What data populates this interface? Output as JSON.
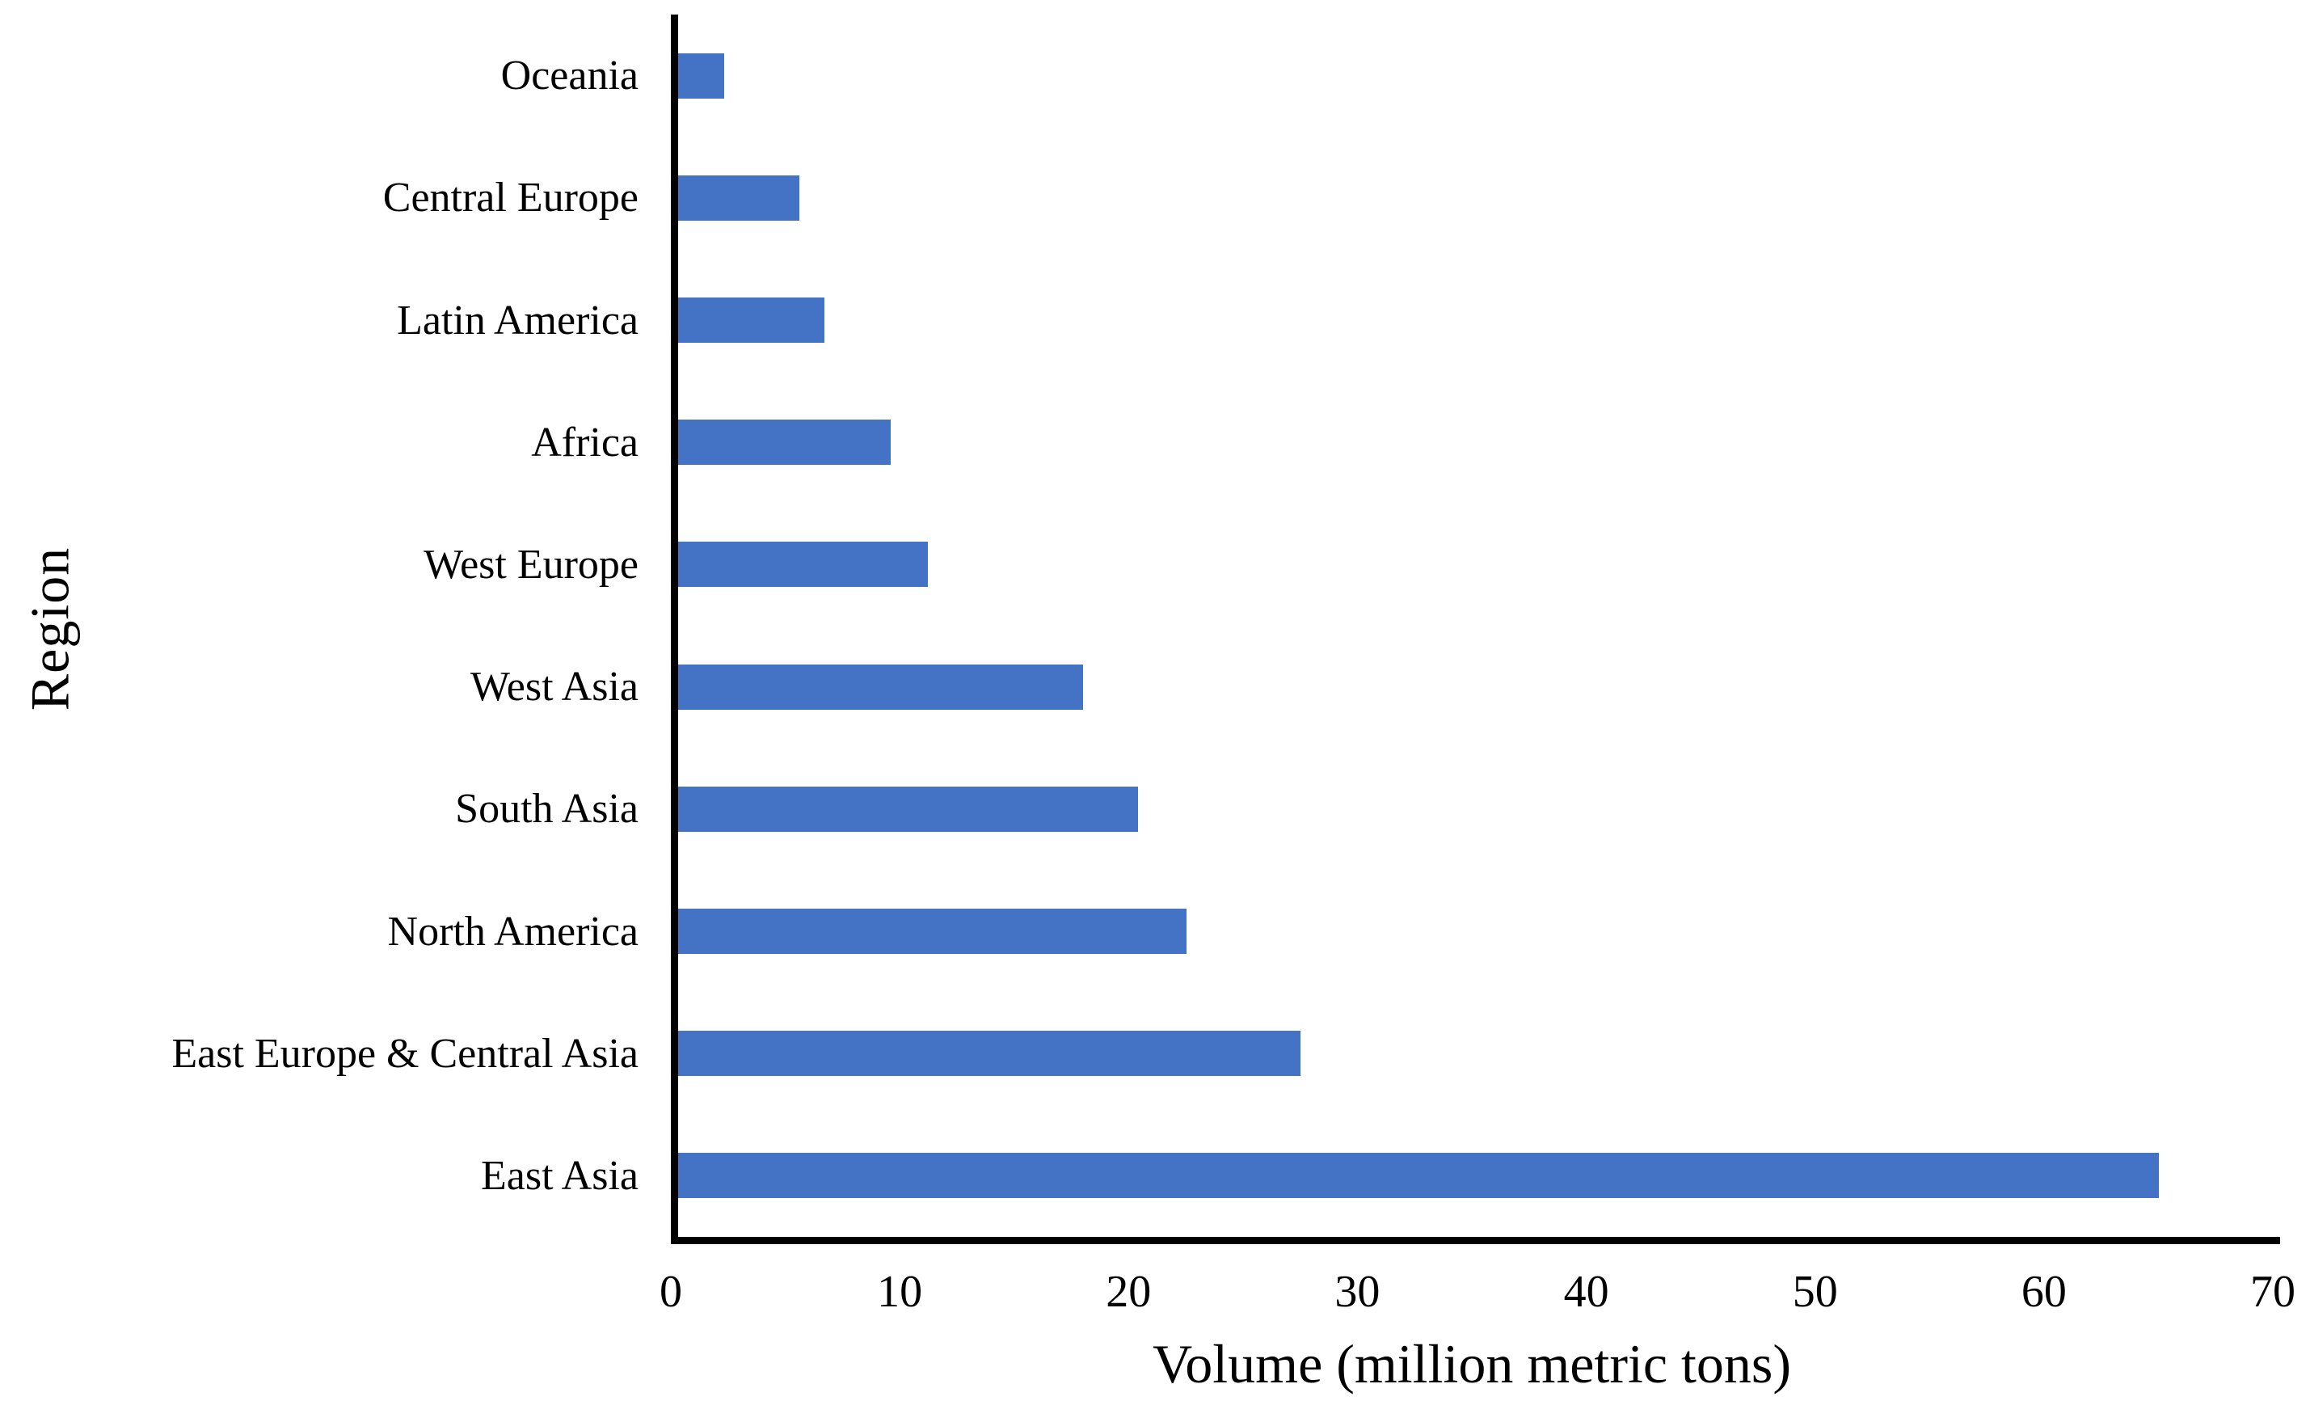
{
  "chart_data": {
    "type": "bar",
    "orientation": "horizontal",
    "title": "",
    "xlabel": "Volume (million metric tons)",
    "ylabel": "Region",
    "xlim": [
      0,
      70
    ],
    "xticks": [
      0,
      10,
      20,
      30,
      40,
      50,
      60,
      70
    ],
    "grid": false,
    "legend": null,
    "bar_color": "#4472C4",
    "axis_color": "#000000",
    "categories": [
      "Oceania",
      "Central Europe",
      "Latin America",
      "Africa",
      "West Europe",
      "West Asia",
      "South Asia",
      "North America",
      "East Europe & Central Asia",
      "East Asia"
    ],
    "values": [
      2.0,
      5.3,
      6.4,
      9.3,
      10.9,
      17.7,
      20.1,
      22.2,
      27.2,
      64.7
    ]
  }
}
